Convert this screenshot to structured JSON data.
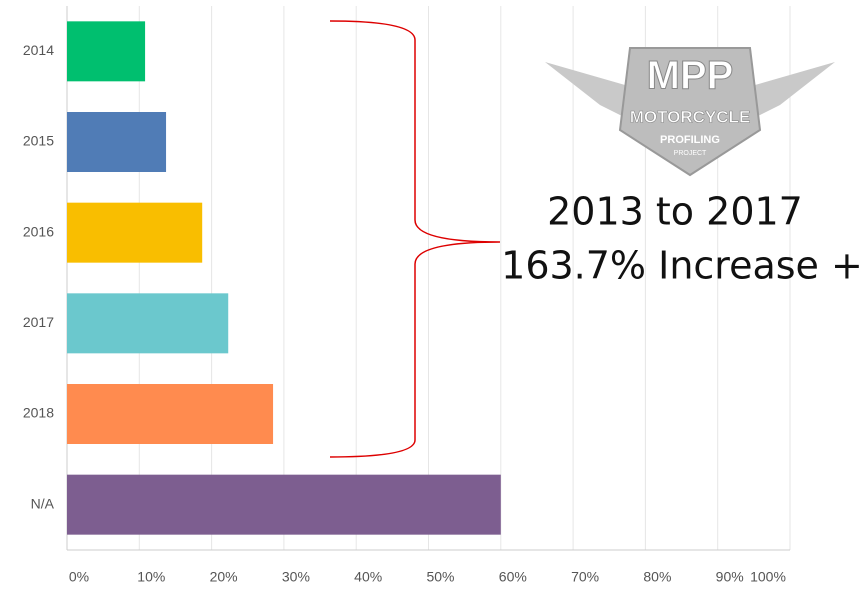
{
  "chart_data": {
    "type": "barh",
    "categories": [
      "2014",
      "2015",
      "2016",
      "2017",
      "2018",
      "N/A"
    ],
    "values": [
      10.8,
      13.7,
      18.7,
      22.3,
      28.5,
      60
    ],
    "colors": [
      "#00bf6f",
      "#507cb6",
      "#f9be00",
      "#6bc8cd",
      "#ff8b4f",
      "#7d5e90"
    ],
    "xlim": [
      0,
      100
    ],
    "xticks": [
      {
        "value": 0,
        "label": "0%"
      },
      {
        "value": 10,
        "label": "10%"
      },
      {
        "value": 20,
        "label": "20%"
      },
      {
        "value": 30,
        "label": "30%"
      },
      {
        "value": 40,
        "label": "40%"
      },
      {
        "value": 50,
        "label": "50%"
      },
      {
        "value": 60,
        "label": "60%"
      },
      {
        "value": 70,
        "label": "70%"
      },
      {
        "value": 80,
        "label": "80%"
      },
      {
        "value": 90,
        "label": "90%"
      },
      {
        "value": 100,
        "label": "100%"
      }
    ],
    "grid": true,
    "annotations": [
      "2013 to 2017",
      "163.7% Increase +"
    ],
    "logo": [
      "MPP",
      "MOTORCYCLE",
      "PROFILING",
      "PROJECT"
    ]
  }
}
